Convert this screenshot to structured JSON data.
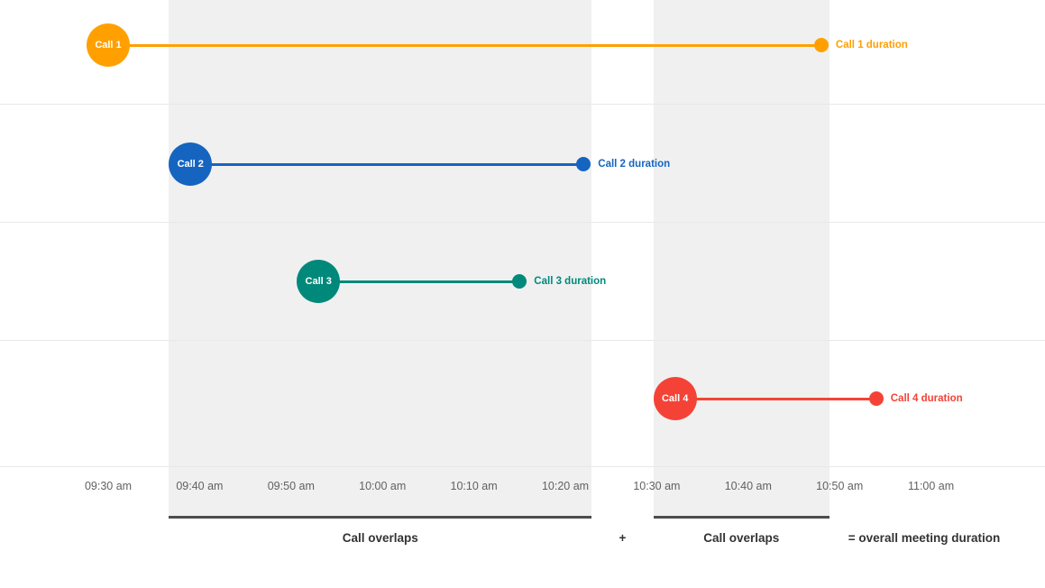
{
  "chart_data": {
    "type": "timeline",
    "title": "",
    "time_axis": {
      "start": "09:30",
      "end": "11:00",
      "tick_interval_minutes": 10,
      "tick_labels": [
        "09:30 am",
        "09:40 am",
        "09:50 am",
        "10:00 am",
        "10:10 am",
        "10:20 am",
        "10:30 am",
        "10:40 am",
        "10:50 am",
        "11:00 am"
      ]
    },
    "calls": [
      {
        "id": "call-1",
        "label": "Call 1",
        "duration_label": "Call 1 duration",
        "start": "09:30",
        "end": "10:48",
        "color": "#FFA000"
      },
      {
        "id": "call-2",
        "label": "Call 2",
        "duration_label": "Call 2 duration",
        "start": "09:39",
        "end": "10:22",
        "color": "#1565C0"
      },
      {
        "id": "call-3",
        "label": "Call 3",
        "duration_label": "Call 3 duration",
        "start": "09:53",
        "end": "10:15",
        "color": "#00897B"
      },
      {
        "id": "call-4",
        "label": "Call 4",
        "duration_label": "Call 4 duration",
        "start": "10:32",
        "end": "10:54",
        "color": "#F44336"
      }
    ],
    "overlap_bands": [
      {
        "start": "09:39",
        "end": "10:22",
        "label": "Call overlaps"
      },
      {
        "start": "10:32",
        "end": "10:48",
        "label": "Call overlaps"
      }
    ],
    "footer": {
      "plus_sign": "+",
      "result_label": "= overall meeting duration"
    },
    "colors": {
      "band": "#F0F0F0",
      "gridline": "#E8E8E8",
      "tick_label": "#616161",
      "footer_text": "#333333",
      "underline": "#4D4D4D"
    }
  }
}
